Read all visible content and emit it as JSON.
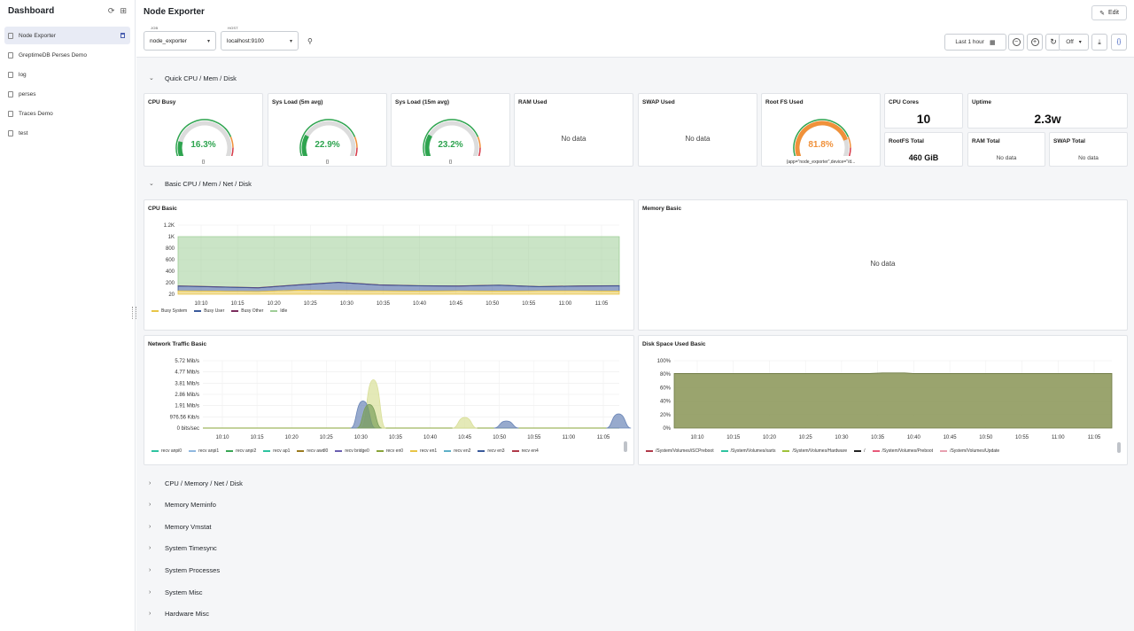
{
  "sidebar": {
    "title": "Dashboard",
    "items": [
      {
        "label": "Node Exporter",
        "active": true
      },
      {
        "label": "GreptimeDB Perses Demo"
      },
      {
        "label": "log"
      },
      {
        "label": "perses"
      },
      {
        "label": "Traces Demo"
      },
      {
        "label": "test"
      }
    ]
  },
  "header": {
    "title": "Node Exporter",
    "edit_label": "Edit",
    "variables": [
      {
        "label": "JOB",
        "value": "node_exporter"
      },
      {
        "label": "HOST",
        "value": "localhost:9100"
      }
    ],
    "time_range": "Last 1 hour",
    "refresh": "Off"
  },
  "rows": {
    "quick": "Quick CPU / Mem / Disk",
    "basic": "Basic CPU / Mem / Net / Disk",
    "collapsed": [
      "CPU / Memory / Net / Disk",
      "Memory Meminfo",
      "Memory Vmstat",
      "System Timesync",
      "System Processes",
      "System Misc",
      "Hardware Misc"
    ]
  },
  "quick": {
    "gauges": [
      {
        "title": "CPU Busy",
        "value": "16.3%",
        "pct": 16.3,
        "color": "#2ea44f",
        "label": "{}"
      },
      {
        "title": "Sys Load (5m avg)",
        "value": "22.9%",
        "pct": 22.9,
        "color": "#2ea44f",
        "label": "{}"
      },
      {
        "title": "Sys Load (15m avg)",
        "value": "23.2%",
        "pct": 23.2,
        "color": "#2ea44f",
        "label": "{}"
      },
      {
        "title": "Root FS Used",
        "value": "81.8%",
        "pct": 81.8,
        "color": "#f0913a",
        "label": "{app=\"node_exporter\",device=\"/d..."
      }
    ],
    "ram_used": {
      "title": "RAM Used",
      "value": "No data"
    },
    "swap_used": {
      "title": "SWAP Used",
      "value": "No data"
    },
    "cpu_cores": {
      "title": "CPU Cores",
      "value": "10"
    },
    "uptime": {
      "title": "Uptime",
      "value": "2.3w"
    },
    "rootfs_total": {
      "title": "RootFS Total",
      "value": "460 GiB"
    },
    "ram_total": {
      "title": "RAM Total",
      "value": "No data"
    },
    "swap_total": {
      "title": "SWAP Total",
      "value": "No data"
    }
  },
  "basic": {
    "cpu_title": "CPU Basic",
    "mem_title": "Memory Basic",
    "mem_nodata": "No data",
    "net_title": "Network Traffic Basic",
    "disk_title": "Disk Space Used Basic"
  },
  "chart_data": [
    {
      "type": "area",
      "title": "CPU Basic",
      "x": [
        "10:10",
        "10:15",
        "10:20",
        "10:25",
        "10:30",
        "10:35",
        "10:40",
        "10:45",
        "10:50",
        "10:55",
        "11:00",
        "11:05"
      ],
      "y_ticks": [
        "1.2K",
        "1K",
        "800",
        "600",
        "400",
        "200",
        "20"
      ],
      "ylim": [
        0,
        1200
      ],
      "stacked": true,
      "series": [
        {
          "name": "Busy System",
          "color": "#e8c547",
          "values": [
            60,
            55,
            50,
            70,
            65,
            60,
            55,
            60,
            55,
            60,
            60,
            55
          ]
        },
        {
          "name": "Busy User",
          "color": "#3a5a9b",
          "values": [
            80,
            70,
            60,
            90,
            140,
            100,
            90,
            80,
            100,
            70,
            80,
            90
          ]
        },
        {
          "name": "Busy Other",
          "color": "#7b2d5e",
          "values": [
            5,
            5,
            5,
            5,
            5,
            5,
            5,
            5,
            5,
            5,
            5,
            5
          ]
        },
        {
          "name": "Idle",
          "color": "#9fce97",
          "values": [
            855,
            870,
            885,
            835,
            790,
            835,
            850,
            855,
            840,
            865,
            855,
            850
          ]
        }
      ]
    },
    {
      "type": "area",
      "title": "Network Traffic Basic",
      "x": [
        "10:10",
        "10:15",
        "10:20",
        "10:25",
        "10:30",
        "10:35",
        "10:40",
        "10:45",
        "10:50",
        "10:55",
        "11:00",
        "11:05"
      ],
      "y_ticks": [
        "5.72 Mib/s",
        "4.77 Mib/s",
        "3.81 Mib/s",
        "2.86 Mib/s",
        "1.91 Mib/s",
        "976.56 Kib/s",
        "0 bits/sec"
      ],
      "ylim": [
        0,
        5.72
      ],
      "series": [
        {
          "name": "recv anpi0",
          "color": "#2ec4a0"
        },
        {
          "name": "recv anpi1",
          "color": "#8fb8e0"
        },
        {
          "name": "recv anpi2",
          "color": "#3aa655"
        },
        {
          "name": "recv ap1",
          "color": "#2ec4a0"
        },
        {
          "name": "recv awdl0",
          "color": "#9b7b1f"
        },
        {
          "name": "recv bridge0",
          "color": "#6b5fb0"
        },
        {
          "name": "recv en0",
          "color": "#8aa43a"
        },
        {
          "name": "recv en1",
          "color": "#e8c547"
        },
        {
          "name": "recv en2",
          "color": "#5fb0c8"
        },
        {
          "name": "recv en3",
          "color": "#3a5a9b"
        },
        {
          "name": "recv en4",
          "color": "#b03a4a"
        }
      ],
      "peaks": [
        {
          "color": "#d9df98",
          "x": 10.53,
          "value": 4.1
        },
        {
          "color": "#6b86b8",
          "x": 10.505,
          "value": 2.3
        },
        {
          "color": "#7b9f5a",
          "x": 10.52,
          "value": 2.0
        },
        {
          "color": "#d9df98",
          "x": 10.75,
          "value": 0.9
        },
        {
          "color": "#6b86b8",
          "x": 10.85,
          "value": 0.6
        },
        {
          "color": "#6b86b8",
          "x": 11.12,
          "value": 1.2
        }
      ]
    },
    {
      "type": "area",
      "title": "Disk Space Used Basic",
      "x": [
        "10:10",
        "10:15",
        "10:20",
        "10:25",
        "10:30",
        "10:35",
        "10:40",
        "10:45",
        "10:50",
        "10:55",
        "11:00",
        "11:05"
      ],
      "y_ticks": [
        "100%",
        "80%",
        "60%",
        "40%",
        "20%",
        "0%"
      ],
      "ylim": [
        0,
        100
      ],
      "series": [
        {
          "name": "/System/Volumes/iSCPreboot",
          "color": "#b03a4a",
          "value": 81
        },
        {
          "name": "/System/Volumes/xarts",
          "color": "#2ec4a0",
          "value": 81
        },
        {
          "name": "/System/Volumes/Hardware",
          "color": "#9fc23a",
          "value": 81
        },
        {
          "name": "/",
          "color": "#222222",
          "value": 81
        },
        {
          "name": "/System/Volumes/Preboot",
          "color": "#e85a7a",
          "value": 81
        },
        {
          "name": "/System/Volumes/Update",
          "color": "#e8a0b0",
          "value": 81
        }
      ]
    }
  ]
}
